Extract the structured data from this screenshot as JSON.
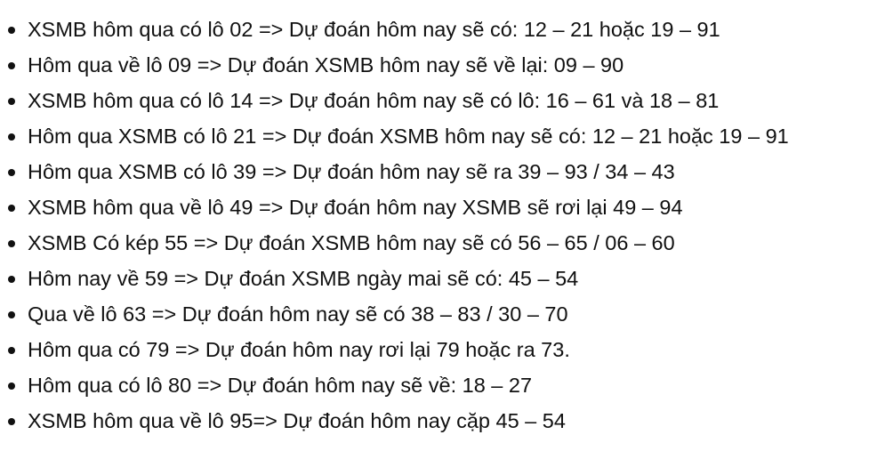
{
  "items": [
    "XSMB hôm qua có lô 02 => Dự đoán hôm nay sẽ có: 12 – 21 hoặc 19 – 91",
    "Hôm qua về lô 09 => Dự đoán XSMB hôm nay sẽ về lại: 09 – 90",
    "XSMB hôm qua có lô 14 => Dự đoán hôm nay sẽ có lô: 16 – 61 và 18 – 81",
    "Hôm qua XSMB có lô 21 => Dự đoán XSMB hôm nay sẽ có: 12 – 21 hoặc 19 – 91",
    "Hôm qua XSMB có lô 39 => Dự đoán hôm nay sẽ ra 39 – 93 / 34 – 43",
    "XSMB hôm qua về lô 49 => Dự đoán hôm nay XSMB sẽ rơi lại 49 – 94",
    "XSMB Có kép 55 => Dự đoán XSMB hôm nay sẽ có 56 – 65 / 06 – 60",
    "Hôm nay về 59 => Dự đoán XSMB ngày mai sẽ có: 45 – 54",
    "Qua về lô 63 => Dự đoán hôm nay sẽ có 38 – 83 / 30 – 70",
    "Hôm qua có 79 => Dự đoán hôm nay rơi lại 79 hoặc ra 73.",
    "Hôm qua có lô 80 => Dự đoán hôm nay sẽ về: 18 – 27",
    "XSMB hôm qua về lô 95=> Dự đoán hôm nay cặp 45 – 54"
  ]
}
